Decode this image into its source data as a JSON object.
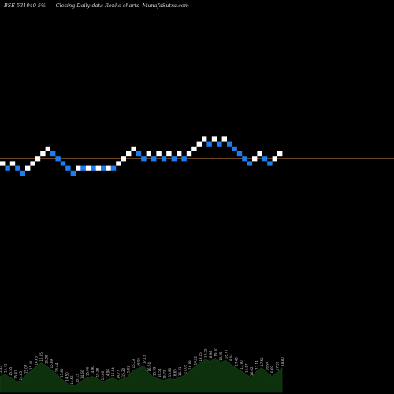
{
  "header": {
    "symbol": "BSE 531049 5%",
    "sep": "|-",
    "desc": "Closing Daily data Renko charts",
    "site": "MunafaSutra.com"
  },
  "colors": {
    "up_brick": "#ffffff",
    "down_brick": "#1c7cf0",
    "last_price_line": "#8a5a2c",
    "volume_fill": "#0d300d",
    "volume_stroke": "#1a4d1a",
    "volume_label": "#cccccc"
  },
  "chart_data": {
    "type": "renko",
    "bricks": [
      {
        "level": 0,
        "dir": "up"
      },
      {
        "level": -1,
        "dir": "down"
      },
      {
        "level": 0,
        "dir": "up"
      },
      {
        "level": -1,
        "dir": "down"
      },
      {
        "level": -2,
        "dir": "down"
      },
      {
        "level": -1,
        "dir": "up"
      },
      {
        "level": 0,
        "dir": "up"
      },
      {
        "level": 1,
        "dir": "up"
      },
      {
        "level": 2,
        "dir": "up"
      },
      {
        "level": 3,
        "dir": "up"
      },
      {
        "level": 2,
        "dir": "down"
      },
      {
        "level": 1,
        "dir": "down"
      },
      {
        "level": 0,
        "dir": "down"
      },
      {
        "level": -1,
        "dir": "down"
      },
      {
        "level": -2,
        "dir": "down"
      },
      {
        "level": -1,
        "dir": "up"
      },
      {
        "level": -1,
        "dir": "down"
      },
      {
        "level": -1,
        "dir": "up"
      },
      {
        "level": -1,
        "dir": "down"
      },
      {
        "level": -1,
        "dir": "up"
      },
      {
        "level": -1,
        "dir": "down"
      },
      {
        "level": -1,
        "dir": "up"
      },
      {
        "level": -1,
        "dir": "down"
      },
      {
        "level": 0,
        "dir": "up"
      },
      {
        "level": 1,
        "dir": "up"
      },
      {
        "level": 2,
        "dir": "up"
      },
      {
        "level": 3,
        "dir": "up"
      },
      {
        "level": 2,
        "dir": "down"
      },
      {
        "level": 1,
        "dir": "down"
      },
      {
        "level": 2,
        "dir": "up"
      },
      {
        "level": 1,
        "dir": "down"
      },
      {
        "level": 2,
        "dir": "up"
      },
      {
        "level": 1,
        "dir": "down"
      },
      {
        "level": 2,
        "dir": "up"
      },
      {
        "level": 1,
        "dir": "down"
      },
      {
        "level": 2,
        "dir": "up"
      },
      {
        "level": 1,
        "dir": "down"
      },
      {
        "level": 2,
        "dir": "up"
      },
      {
        "level": 3,
        "dir": "up"
      },
      {
        "level": 4,
        "dir": "up"
      },
      {
        "level": 5,
        "dir": "up"
      },
      {
        "level": 4,
        "dir": "down"
      },
      {
        "level": 5,
        "dir": "up"
      },
      {
        "level": 4,
        "dir": "down"
      },
      {
        "level": 5,
        "dir": "up"
      },
      {
        "level": 4,
        "dir": "down"
      },
      {
        "level": 3,
        "dir": "down"
      },
      {
        "level": 2,
        "dir": "down"
      },
      {
        "level": 1,
        "dir": "down"
      },
      {
        "level": 0,
        "dir": "down"
      },
      {
        "level": 1,
        "dir": "up"
      },
      {
        "level": 2,
        "dir": "up"
      },
      {
        "level": 1,
        "dir": "down"
      },
      {
        "level": 0,
        "dir": "down"
      },
      {
        "level": 1,
        "dir": "up"
      },
      {
        "level": 2,
        "dir": "up"
      }
    ],
    "last_price_level": 1,
    "volume": [
      {
        "v": 0.3,
        "label": "15.55"
      },
      {
        "v": 0.34,
        "label": "15.41"
      },
      {
        "v": 0.28,
        "label": "15.55"
      },
      {
        "v": 0.22,
        "label": "15.41"
      },
      {
        "v": 0.2,
        "label": "14.85"
      },
      {
        "v": 0.32,
        "label": "15.07"
      },
      {
        "v": 0.4,
        "label": "15.41"
      },
      {
        "v": 0.48,
        "label": "16.63"
      },
      {
        "v": 0.55,
        "label": "16.95"
      },
      {
        "v": 0.5,
        "label": "16.88"
      },
      {
        "v": 0.42,
        "label": "16.69"
      },
      {
        "v": 0.35,
        "label": "16.44"
      },
      {
        "v": 0.25,
        "label": "15.80"
      },
      {
        "v": 0.18,
        "label": "14.50"
      },
      {
        "v": 0.12,
        "label": "14.56"
      },
      {
        "v": 0.15,
        "label": "15.13"
      },
      {
        "v": 0.22,
        "label": "14.60"
      },
      {
        "v": 0.28,
        "label": "15.00"
      },
      {
        "v": 0.3,
        "label": "14.90"
      },
      {
        "v": 0.26,
        "label": "15.28"
      },
      {
        "v": 0.2,
        "label": "15.06"
      },
      {
        "v": 0.24,
        "label": "14.98"
      },
      {
        "v": 0.27,
        "label": "15.04"
      },
      {
        "v": 0.22,
        "label": "14.77"
      },
      {
        "v": 0.26,
        "label": "15.20"
      },
      {
        "v": 0.3,
        "label": "15.02"
      },
      {
        "v": 0.42,
        "label": "16.23"
      },
      {
        "v": 0.45,
        "label": "16.05"
      },
      {
        "v": 0.5,
        "label": "17.13"
      },
      {
        "v": 0.36,
        "label": "16.74"
      },
      {
        "v": 0.28,
        "label": "15.99"
      },
      {
        "v": 0.25,
        "label": "16.54"
      },
      {
        "v": 0.22,
        "label": "15.73"
      },
      {
        "v": 0.26,
        "label": "15.90"
      },
      {
        "v": 0.24,
        "label": "16.65"
      },
      {
        "v": 0.28,
        "label": "16.31"
      },
      {
        "v": 0.32,
        "label": "17.02"
      },
      {
        "v": 0.4,
        "label": "16.88"
      },
      {
        "v": 0.48,
        "label": "18.22"
      },
      {
        "v": 0.55,
        "label": "18.05"
      },
      {
        "v": 0.62,
        "label": "19.25"
      },
      {
        "v": 0.58,
        "label": "18.98"
      },
      {
        "v": 0.64,
        "label": "19.10"
      },
      {
        "v": 0.56,
        "label": "19.25"
      },
      {
        "v": 0.6,
        "label": "18.76"
      },
      {
        "v": 0.52,
        "label": "18.04"
      },
      {
        "v": 0.46,
        "label": "17.43"
      },
      {
        "v": 0.4,
        "label": "17.90"
      },
      {
        "v": 0.34,
        "label": "16.57"
      },
      {
        "v": 0.28,
        "label": "16.62"
      },
      {
        "v": 0.4,
        "label": "17.14"
      },
      {
        "v": 0.46,
        "label": "17.52"
      },
      {
        "v": 0.38,
        "label": "16.94"
      },
      {
        "v": 0.3,
        "label": "16.69"
      },
      {
        "v": 0.38,
        "label": "17.39"
      },
      {
        "v": 0.46,
        "label": "18.80"
      }
    ]
  }
}
